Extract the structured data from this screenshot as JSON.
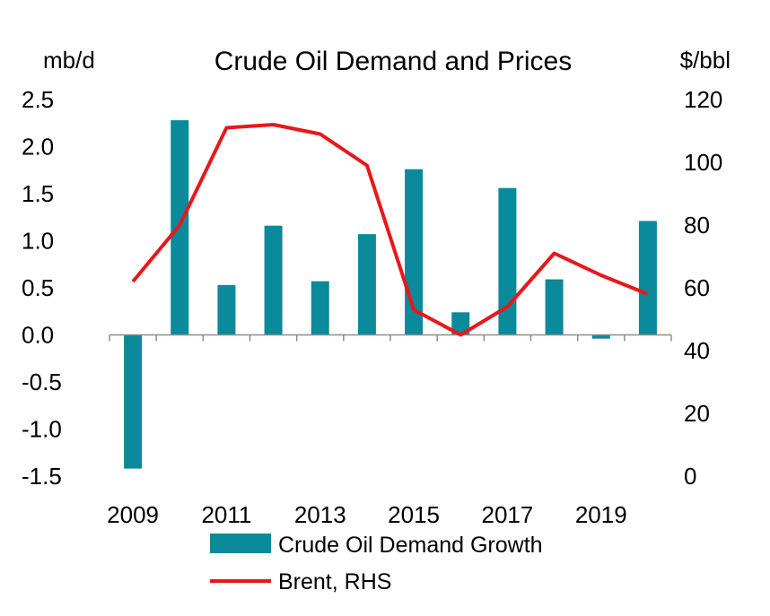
{
  "chart_data": {
    "type": "bar",
    "title": "Crude Oil Demand and Prices",
    "y_left_unit": "mb/d",
    "y_right_unit": "$/bbl",
    "y_left_lim": [
      -1.5,
      2.5
    ],
    "y_right_lim": [
      0,
      120
    ],
    "y_left_ticks": [
      "2.5",
      "2.0",
      "1.5",
      "1.0",
      "0.5",
      "0.0",
      "-0.5",
      "-1.0",
      "-1.5"
    ],
    "y_right_ticks": [
      "120",
      "100",
      "80",
      "60",
      "40",
      "20",
      "0"
    ],
    "x": [
      2009,
      2010,
      2011,
      2012,
      2013,
      2014,
      2015,
      2016,
      2017,
      2018,
      2019,
      2020
    ],
    "x_tick_labels": [
      "2009",
      "2011",
      "2013",
      "2015",
      "2017",
      "2019"
    ],
    "grid": false,
    "legend_position": "bottom",
    "series": [
      {
        "name": "Crude Oil Demand Growth",
        "type": "bar",
        "axis": "left",
        "color": "#0a8a9b",
        "values": [
          -1.42,
          2.28,
          0.53,
          1.16,
          0.57,
          1.07,
          1.76,
          0.24,
          1.56,
          0.59,
          -0.04,
          1.21
        ]
      },
      {
        "name": "Brent, RHS",
        "type": "line",
        "axis": "right",
        "color": "#e8171b",
        "values": [
          62,
          80,
          111,
          112,
          109,
          99,
          53,
          45,
          54,
          71,
          64,
          58
        ]
      }
    ]
  }
}
